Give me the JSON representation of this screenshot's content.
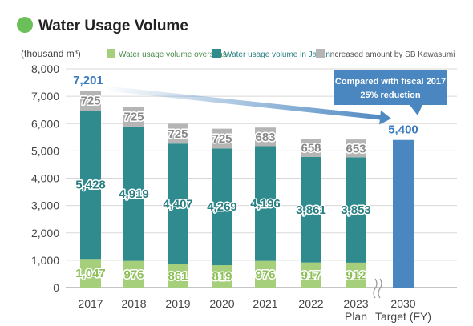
{
  "title": "Water Usage Volume",
  "colors": {
    "title_dot": "#6bbf59",
    "overseas": "#a5cf7a",
    "japan": "#2f8b8e",
    "kawasumi": "#b5b5b5",
    "target": "#4a86c0",
    "total_label": "#3b7bbf",
    "callout": "#4a86c0"
  },
  "chart_data": {
    "type": "bar",
    "stacked": true,
    "unit_label": "(thousand m³)",
    "ylim": [
      0,
      8000
    ],
    "yticks": [
      "0",
      "1,000",
      "2,000",
      "3,000",
      "4,000",
      "5,000",
      "6,000",
      "7,000",
      "8,000"
    ],
    "grid": true,
    "legend_position": "top",
    "categories": [
      "2017",
      "2018",
      "2019",
      "2020",
      "2021",
      "2022",
      "2023\nPlan"
    ],
    "series": [
      {
        "name": "Water usage volume overseas",
        "values": [
          1047,
          976,
          861,
          819,
          976,
          917,
          912
        ],
        "labels": [
          "1,047",
          "976",
          "861",
          "819",
          "976",
          "917",
          "912"
        ]
      },
      {
        "name": "Water usage volume in Japan",
        "values": [
          5428,
          4919,
          4407,
          4269,
          4196,
          3861,
          3853
        ],
        "labels": [
          "5,428",
          "4,919",
          "4,407",
          "4,269",
          "4,196",
          "3,861",
          "3,853"
        ]
      },
      {
        "name": "Increased amount by SB Kawasumi",
        "values": [
          725,
          725,
          725,
          725,
          683,
          658,
          653
        ],
        "labels": [
          "725",
          "725",
          "725",
          "725",
          "683",
          "658",
          "653"
        ]
      }
    ],
    "total_2017": {
      "value": 7201,
      "label": "7,201"
    },
    "target": {
      "category": "2030\nTarget (FY)",
      "value": 5400,
      "label": "5,400"
    },
    "callout": {
      "line1": "Compared with fiscal 2017",
      "line2": "25% reduction"
    }
  }
}
